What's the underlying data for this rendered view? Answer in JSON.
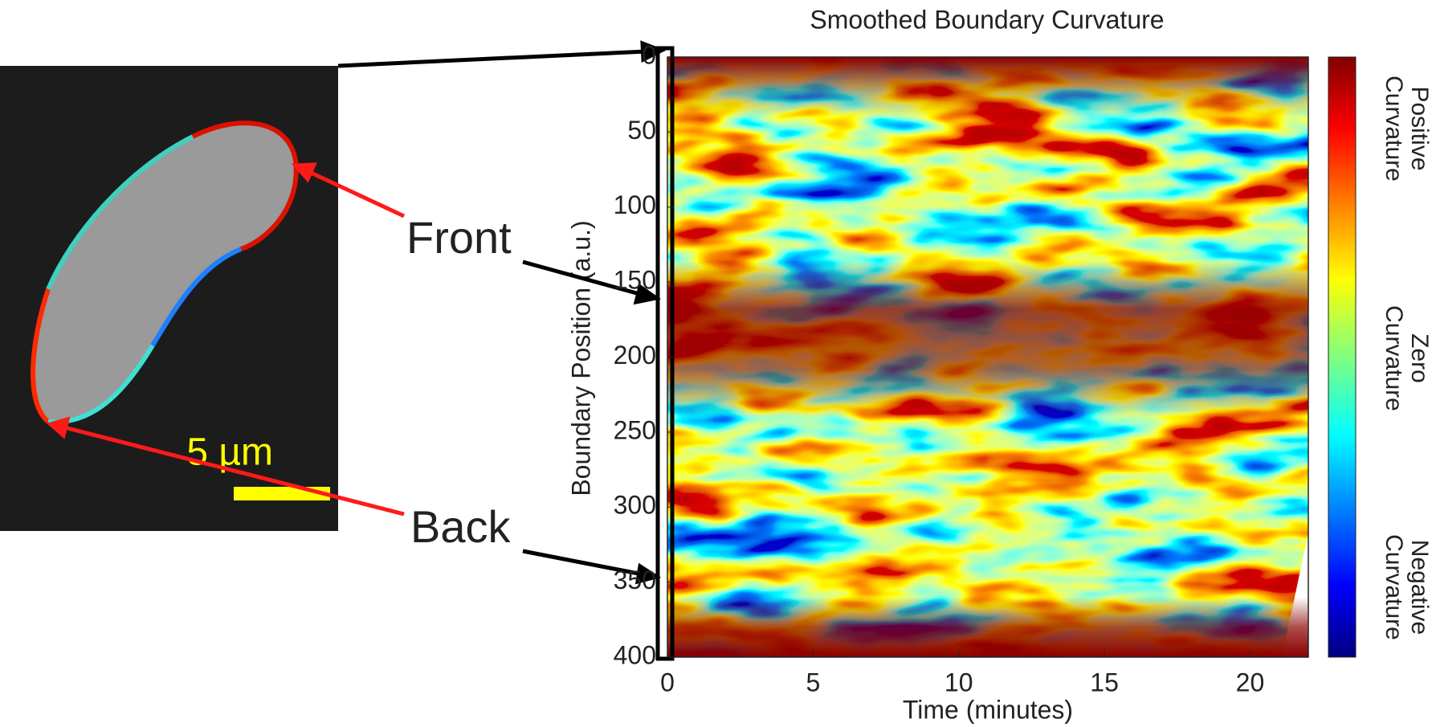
{
  "chart_data": {
    "type": "heatmap",
    "title": "Smoothed Boundary Curvature",
    "xlabel": "Time (minutes)",
    "ylabel": "Boundary Position (a.u.)",
    "xlim": [
      0,
      22
    ],
    "xticks": [
      0,
      5,
      10,
      15,
      20
    ],
    "ylim": [
      0,
      400
    ],
    "yticks": [
      0,
      50,
      100,
      150,
      200,
      250,
      300,
      350,
      400
    ],
    "y_inverted": true,
    "colormap": "jet",
    "colorbar_labels": [
      [
        "Positive",
        "Curvature"
      ],
      [
        "Zero",
        "Curvature"
      ],
      [
        "Negative",
        "Curvature"
      ]
    ],
    "annotations": [
      "Front",
      "Back"
    ],
    "scale_bar": "5 µm"
  }
}
